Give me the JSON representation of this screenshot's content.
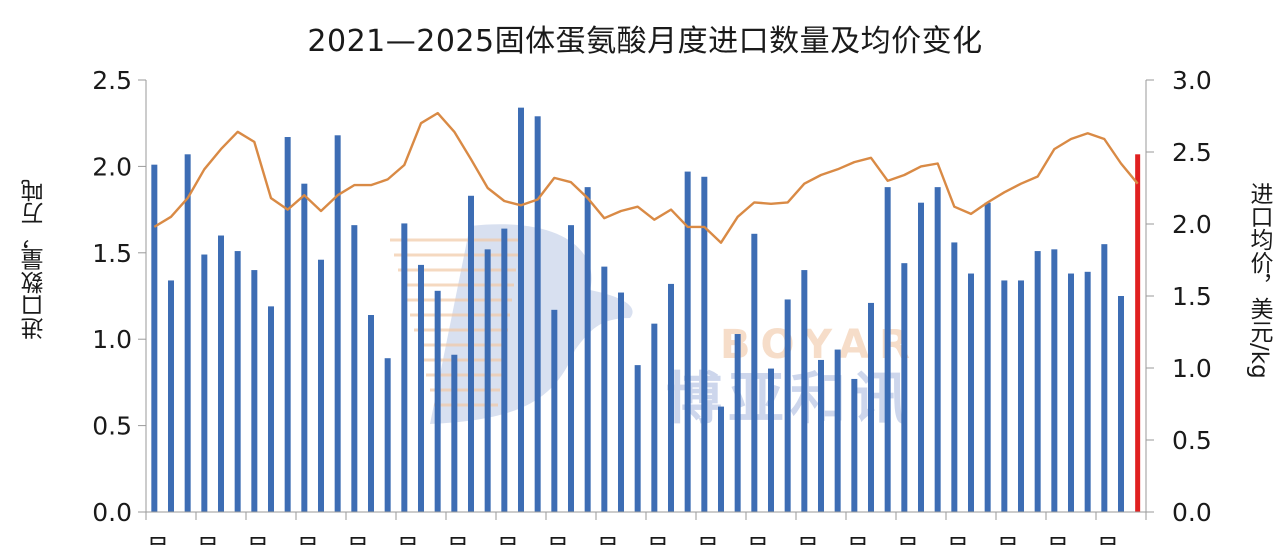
{
  "chart_data": {
    "type": "bar",
    "title": "2021—2025固体蛋氨酸月度进口数量及均价变化",
    "ylabel": "进口数量，万吨",
    "y2label": "进口均价，美元/kg",
    "ylim": [
      0,
      2.5
    ],
    "y2lim": [
      0,
      3.0
    ],
    "y_ticks": [
      "0.0",
      "0.5",
      "1.0",
      "1.5",
      "2.0",
      "2.5"
    ],
    "y2_ticks": [
      "0.0",
      "0.5",
      "1.0",
      "1.5",
      "2.0",
      "2.5",
      "3.0"
    ],
    "x_tick_char": "月",
    "series": [
      {
        "type": "bar",
        "color": "#3d6db4",
        "values": [
          2.01,
          1.34,
          2.07,
          1.49,
          1.6,
          1.51,
          1.4,
          1.19,
          2.17,
          1.9,
          1.46,
          2.18,
          1.66,
          1.14,
          0.89,
          1.67,
          1.43,
          1.28,
          0.91,
          1.83,
          1.52,
          1.64,
          2.34,
          2.29,
          1.17,
          1.66,
          1.88,
          1.42,
          1.27,
          0.85,
          1.09,
          1.32,
          1.97,
          1.94,
          0.61,
          1.03,
          1.61,
          0.83,
          1.23,
          1.4,
          0.88,
          0.94,
          0.77,
          1.21,
          1.88,
          1.44,
          1.79,
          1.88,
          1.56,
          1.38,
          1.79,
          1.34,
          1.34,
          1.51,
          1.52,
          1.38,
          1.39,
          1.55,
          1.25,
          2.07
        ],
        "highlight_last": true,
        "highlight_color": "#e02020"
      },
      {
        "type": "line",
        "axis": "right",
        "color": "#d98a45",
        "values": [
          1.98,
          2.05,
          2.18,
          2.38,
          2.52,
          2.64,
          2.57,
          2.18,
          2.1,
          2.2,
          2.09,
          2.2,
          2.27,
          2.27,
          2.31,
          2.41,
          2.7,
          2.77,
          2.64,
          2.45,
          2.25,
          2.16,
          2.13,
          2.17,
          2.32,
          2.29,
          2.18,
          2.04,
          2.09,
          2.12,
          2.03,
          2.1,
          1.98,
          1.98,
          1.87,
          2.05,
          2.15,
          2.14,
          2.15,
          2.28,
          2.34,
          2.38,
          2.43,
          2.46,
          2.3,
          2.34,
          2.4,
          2.42,
          2.12,
          2.07,
          2.15,
          2.22,
          2.28,
          2.33,
          2.52,
          2.59,
          2.63,
          2.59,
          2.42,
          2.28
        ]
      }
    ],
    "watermark": {
      "en": "BOYAR",
      "zh": "博亚和讯"
    }
  }
}
